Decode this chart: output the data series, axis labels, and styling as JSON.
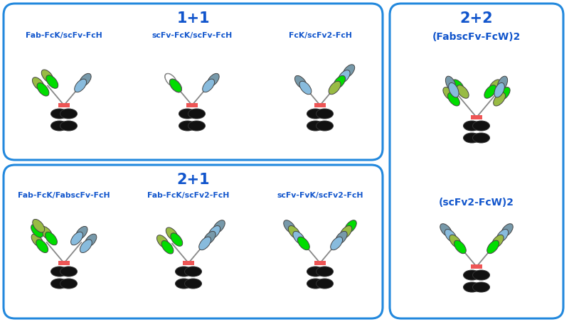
{
  "background_color": "#ffffff",
  "border_color": "#2288dd",
  "text_color": "#1155cc",
  "box1_title": "1+1",
  "box2_title": "2+1",
  "box3_title": "2+2",
  "labels_box1": [
    "Fab-FcK/scFv-FcH",
    "scFv-FcK/scFv-FcH",
    "FcK/scFv2-FcH"
  ],
  "labels_box2": [
    "Fab-FcK/FabscFv-FcH",
    "Fab-FcK/scFv2-FcH",
    "scFv-FvK/scFv2-FcH"
  ],
  "label_box3_top": "(FabscFv-FcW)2",
  "label_box3_bottom": "(scFv2-FcW)2",
  "colors": {
    "green_bright": "#00dd00",
    "green_olive": "#99bb44",
    "blue_light": "#88bbdd",
    "blue_gray": "#7799aa",
    "black": "#111111",
    "red_hinge": "#ee5555",
    "white": "#ffffff"
  }
}
